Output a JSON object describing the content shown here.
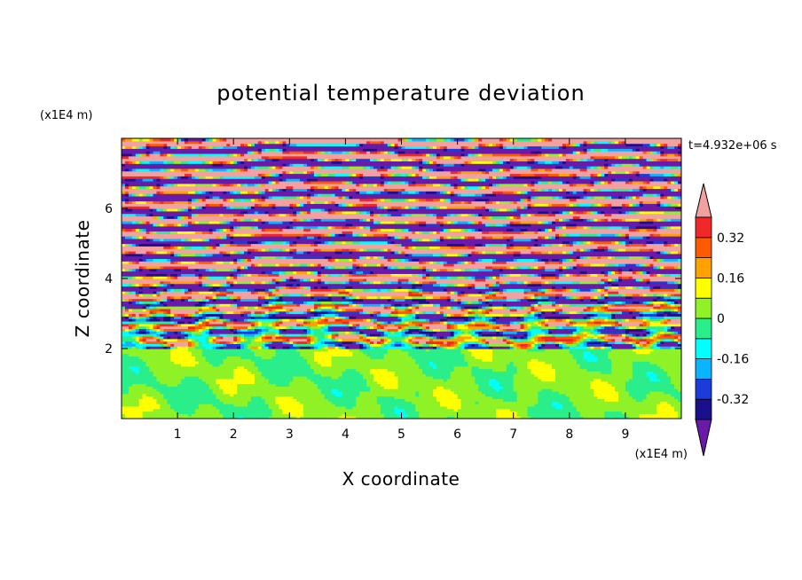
{
  "chart_data": {
    "type": "heatmap",
    "title": "potential temperature deviation",
    "xlabel": "X coordinate",
    "ylabel": "Z coordinate",
    "x_unit": "(x1E4 m)",
    "y_unit": "(x1E4 m)",
    "time_label": "t=4.932e+06 s",
    "xlim": [
      0,
      10
    ],
    "ylim": [
      0,
      8
    ],
    "x_ticks": [
      "1",
      "2",
      "3",
      "4",
      "5",
      "6",
      "7",
      "8",
      "9"
    ],
    "y_ticks": [
      "2",
      "4",
      "6"
    ],
    "x_tick_values": [
      1,
      2,
      3,
      4,
      5,
      6,
      7,
      8,
      9
    ],
    "y_tick_values": [
      2,
      4,
      6
    ],
    "grid": false,
    "colorbar": {
      "levels": [
        -0.4,
        -0.32,
        -0.24,
        -0.16,
        -0.08,
        0,
        0.08,
        0.16,
        0.24,
        0.32,
        0.4
      ],
      "colors": [
        "#1c0f8c",
        "#1a3cd8",
        "#0ab4ff",
        "#00ffff",
        "#2aee8a",
        "#8ef226",
        "#ffff00",
        "#ffa200",
        "#ff5a00",
        "#f02828"
      ],
      "under_color": "#6a1aa8",
      "over_color": "#f2a0a0",
      "tick_labels": [
        "0.32",
        "0.16",
        "0",
        "-0.16",
        "-0.32"
      ],
      "tick_values": [
        0.32,
        0.16,
        0,
        -0.16,
        -0.32
      ]
    },
    "regions": [
      {
        "z_range": [
          0,
          2
        ],
        "description": "near-neutral lower layer, values roughly -0.08 to 0.08"
      },
      {
        "z_range": [
          2,
          8
        ],
        "description": "layered bands alternating strongly negative (< -0.4) and strongly positive (> 0.4), with thinner mixed bands between"
      }
    ]
  }
}
